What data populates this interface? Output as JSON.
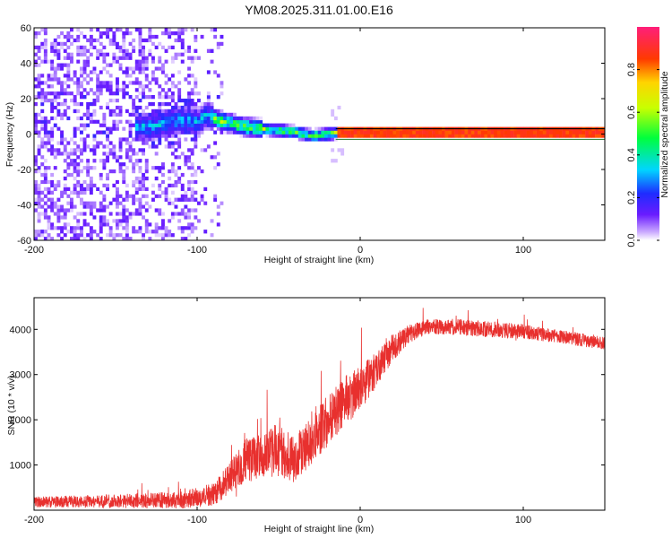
{
  "title": "YM08.2025.311.01.00.E16",
  "chart_data": [
    {
      "type": "heatmap",
      "name": "spectrogram",
      "xlabel": "Height of straight line (km)",
      "ylabel": "Frequency (Hz)",
      "xlim": [
        -200,
        150
      ],
      "ylim": [
        -60,
        60
      ],
      "xticks": [
        {
          "v": -200,
          "label": "-200"
        },
        {
          "v": -100,
          "label": "-100"
        },
        {
          "v": 0,
          "label": "0"
        },
        {
          "v": 100,
          "label": "100"
        }
      ],
      "yticks": [
        {
          "v": -60,
          "label": "-60"
        },
        {
          "v": -40,
          "label": "-40"
        },
        {
          "v": -20,
          "label": "-20"
        },
        {
          "v": 0,
          "label": "0"
        },
        {
          "v": 20,
          "label": "20"
        },
        {
          "v": 40,
          "label": "40"
        },
        {
          "v": 60,
          "label": "60"
        }
      ],
      "ridge_x": [
        -130,
        -120,
        -110,
        -100,
        -95,
        -90,
        -85,
        -80,
        -70,
        -60,
        -50,
        -40,
        -30,
        -20,
        -15,
        -10,
        0,
        50,
        100,
        150
      ],
      "ridge_y": [
        3,
        5,
        7,
        6,
        10,
        8,
        6,
        5,
        3,
        2,
        1,
        0,
        -2,
        -1,
        0,
        0,
        0,
        0,
        0,
        0
      ],
      "stable_from_x": -15,
      "stable_freq": 0
    },
    {
      "type": "colorbar",
      "name": "amplitude-colorbar",
      "label": "Normalized spectral amplitude",
      "range": [
        0.0,
        1.0
      ],
      "ticks": [
        {
          "v": 0.0,
          "label": "0.0"
        },
        {
          "v": 0.2,
          "label": "0.2"
        },
        {
          "v": 0.4,
          "label": "0.4"
        },
        {
          "v": 0.6,
          "label": "0.6"
        },
        {
          "v": 0.8,
          "label": "0.8"
        }
      ]
    },
    {
      "type": "line",
      "name": "snr-plot",
      "xlabel": "Height of straight line (km)",
      "ylabel": "SNR (10 * v/v)",
      "xlim": [
        -200,
        150
      ],
      "ylim": [
        0,
        4700
      ],
      "color": "#e8302e",
      "xticks": [
        {
          "v": -200,
          "label": "-200"
        },
        {
          "v": -100,
          "label": "-100"
        },
        {
          "v": 0,
          "label": "0"
        },
        {
          "v": 100,
          "label": "100"
        }
      ],
      "yticks": [
        {
          "v": 1000,
          "label": "1000"
        },
        {
          "v": 2000,
          "label": "2000"
        },
        {
          "v": 3000,
          "label": "3000"
        },
        {
          "v": 4000,
          "label": "4000"
        }
      ],
      "trend_x": [
        -200,
        -150,
        -110,
        -90,
        -80,
        -70,
        -60,
        -50,
        -40,
        -30,
        -20,
        -10,
        0,
        10,
        20,
        30,
        40,
        60,
        80,
        100,
        120,
        150
      ],
      "trend_y": [
        180,
        200,
        220,
        350,
        700,
        1100,
        1200,
        1350,
        1100,
        1600,
        2000,
        2400,
        2700,
        3100,
        3600,
        3900,
        4050,
        4050,
        4000,
        3950,
        3850,
        3700
      ],
      "noise": [
        120,
        150,
        200,
        250,
        350,
        500,
        500,
        600,
        500,
        600,
        600,
        550,
        500,
        400,
        300,
        200,
        180,
        180,
        180,
        160,
        150,
        150
      ]
    }
  ]
}
